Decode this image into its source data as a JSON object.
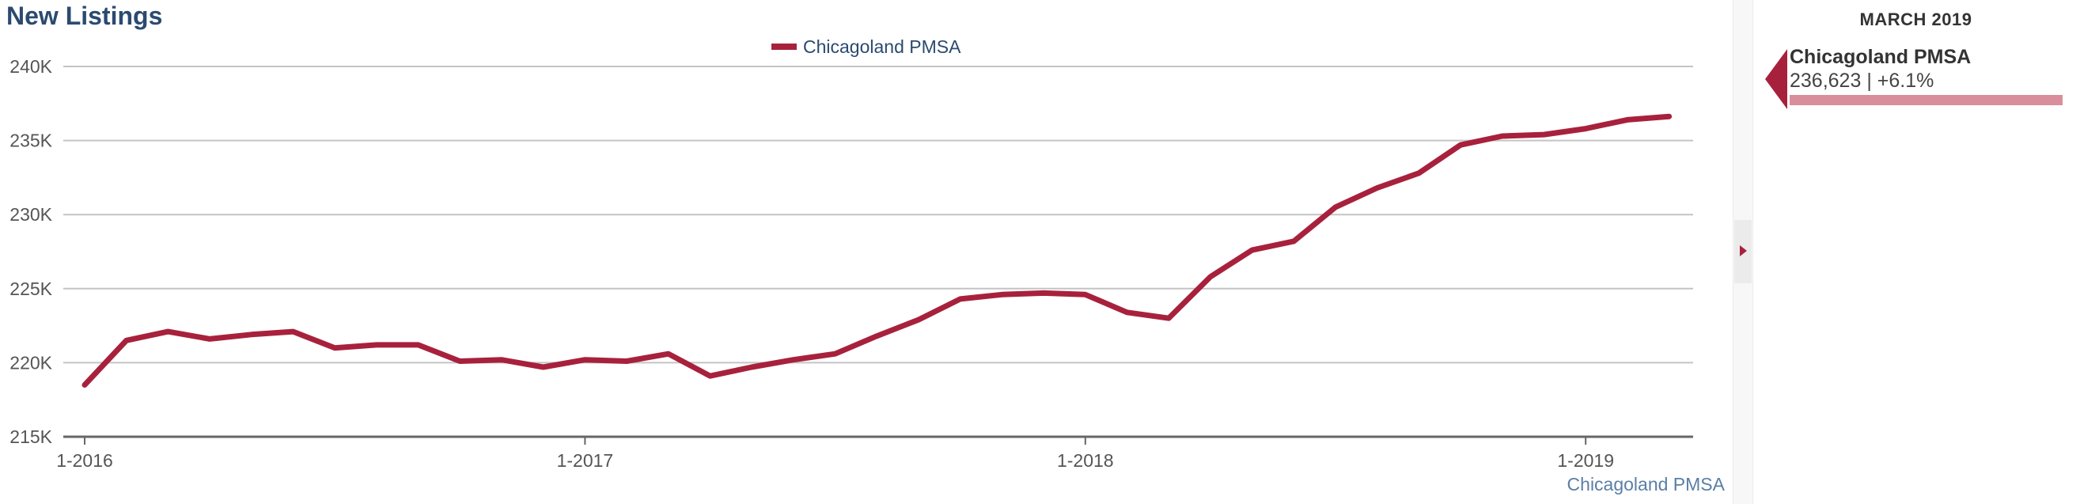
{
  "title": "New Listings",
  "colors": {
    "series": "#a8213c",
    "grid": "#c4c4c4",
    "axis": "#666666",
    "bar": "#d98e9c"
  },
  "chart_data": {
    "type": "line",
    "title": "New Listings",
    "xlabel": "",
    "ylabel": "",
    "ylim": [
      215000,
      240000
    ],
    "yticks": [
      215000,
      220000,
      225000,
      230000,
      235000,
      240000
    ],
    "ytick_labels": [
      "215K",
      "220K",
      "225K",
      "230K",
      "235K",
      "240K"
    ],
    "x_start": "1-2016",
    "xtick_labels": [
      "1-2016",
      "1-2017",
      "1-2018",
      "1-2019"
    ],
    "xtick_index": [
      0,
      12,
      24,
      36
    ],
    "legend": "top-center",
    "grid": true,
    "series": [
      {
        "name": "Chicagoland PMSA",
        "values": [
          218500,
          221500,
          222100,
          221600,
          221900,
          222100,
          221000,
          221200,
          221200,
          220100,
          220200,
          219700,
          220200,
          220100,
          220600,
          219100,
          219700,
          220200,
          220600,
          221800,
          222900,
          224300,
          224600,
          224700,
          224600,
          223400,
          223000,
          225800,
          227600,
          228200,
          230500,
          231800,
          232800,
          234700,
          235300,
          235400,
          235800,
          236400,
          236623
        ]
      }
    ]
  },
  "source_label": "Chicagoland PMSA",
  "panel": {
    "period": "MARCH 2019",
    "name": "Chicagoland PMSA",
    "value": "236,623 | +6.1%",
    "bar_fraction": 1.0
  }
}
